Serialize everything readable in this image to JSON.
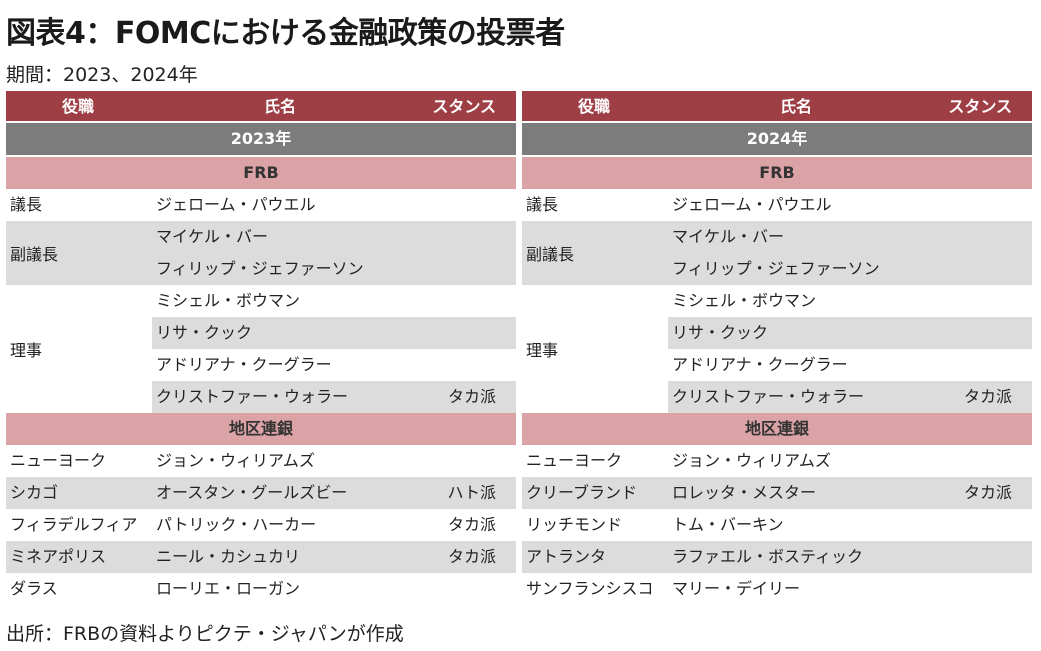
{
  "title": "図表4：FOMCにおける金融政策の投票者",
  "period": "期間：2023、2024年",
  "source": "出所：FRBの資料よりピクテ・ジャパンが作成",
  "headers": {
    "role": "役職",
    "name": "氏名",
    "stance": "スタンス"
  },
  "sections": {
    "frb": "FRB",
    "regional": "地区連銀"
  },
  "left": {
    "year": "2023年",
    "chair": {
      "role": "議長",
      "name": "ジェローム・パウエル"
    },
    "vice_chair": {
      "role": "副議長",
      "names": [
        "マイケル・バー",
        "フィリップ・ジェファーソン"
      ]
    },
    "governors": {
      "role": "理事",
      "members": [
        {
          "name": "ミシェル・ボウマン",
          "stance": ""
        },
        {
          "name": "リサ・クック",
          "stance": ""
        },
        {
          "name": "アドリアナ・クーグラー",
          "stance": ""
        },
        {
          "name": "クリストファー・ウォラー",
          "stance": "タカ派"
        }
      ]
    },
    "regional": [
      {
        "role": "ニューヨーク",
        "name": "ジョン・ウィリアムズ",
        "stance": ""
      },
      {
        "role": "シカゴ",
        "name": "オースタン・グールズビー",
        "stance": "ハト派"
      },
      {
        "role": "フィラデルフィア",
        "name": "パトリック・ハーカー",
        "stance": "タカ派"
      },
      {
        "role": "ミネアポリス",
        "name": "ニール・カシュカリ",
        "stance": "タカ派"
      },
      {
        "role": "ダラス",
        "name": "ローリエ・ローガン",
        "stance": ""
      }
    ]
  },
  "right": {
    "year": "2024年",
    "chair": {
      "role": "議長",
      "name": "ジェローム・パウエル"
    },
    "vice_chair": {
      "role": "副議長",
      "names": [
        "マイケル・バー",
        "フィリップ・ジェファーソン"
      ]
    },
    "governors": {
      "role": "理事",
      "members": [
        {
          "name": "ミシェル・ボウマン",
          "stance": ""
        },
        {
          "name": "リサ・クック",
          "stance": ""
        },
        {
          "name": "アドリアナ・クーグラー",
          "stance": ""
        },
        {
          "name": "クリストファー・ウォラー",
          "stance": "タカ派"
        }
      ]
    },
    "regional": [
      {
        "role": "ニューヨーク",
        "name": "ジョン・ウィリアムズ",
        "stance": ""
      },
      {
        "role": "クリーブランド",
        "name": "ロレッタ・メスター",
        "stance": "タカ派"
      },
      {
        "role": "リッチモンド",
        "name": "トム・バーキン",
        "stance": ""
      },
      {
        "role": "アトランタ",
        "name": "ラファエル・ボスティック",
        "stance": ""
      },
      {
        "role": "サンフランシスコ",
        "name": "マリー・デイリー",
        "stance": ""
      }
    ]
  }
}
